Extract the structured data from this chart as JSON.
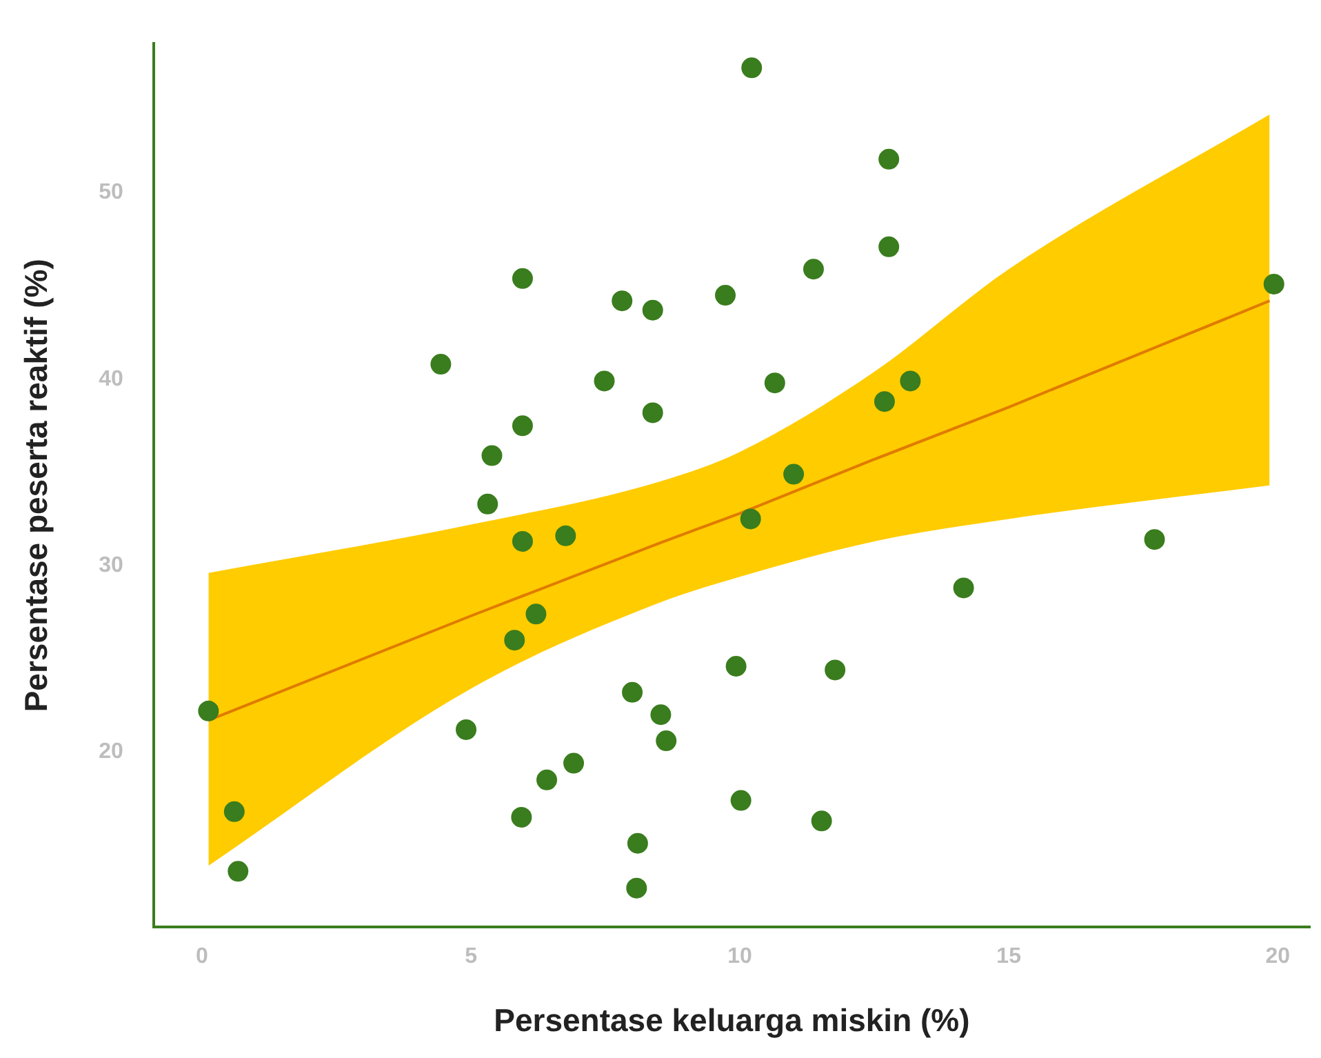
{
  "chart_data": {
    "type": "scatter",
    "xlabel": "Persentase keluarga miskin (%)",
    "ylabel": "Persentase peserta reaktif (%)",
    "xlim": [
      -0.9,
      20.6
    ],
    "xticks": [
      0,
      5,
      10,
      15,
      20
    ],
    "ylim": [
      10.6,
      58
    ],
    "yticks": [
      20,
      30,
      40,
      50
    ],
    "grid": false,
    "legend": false,
    "marker": "circle",
    "series": [
      {
        "type": "scatter",
        "color": "#3a7d1e",
        "x": [
          0.12,
          0.6,
          0.67,
          4.44,
          4.91,
          5.31,
          5.39,
          5.81,
          5.94,
          5.96,
          5.96,
          5.96,
          6.21,
          6.41,
          6.76,
          6.91,
          7.48,
          7.81,
          8.0,
          8.1,
          8.08,
          8.38,
          8.38,
          8.53,
          8.63,
          9.73,
          9.93,
          10.02,
          10.22,
          10.2,
          10.65,
          11.0,
          11.37,
          11.52,
          11.77,
          12.69,
          12.77,
          12.77,
          13.17,
          14.16,
          17.71,
          19.93
        ],
        "values": [
          22.2,
          16.8,
          13.6,
          40.8,
          21.2,
          33.3,
          35.9,
          26.0,
          16.5,
          45.4,
          37.5,
          31.3,
          27.4,
          18.5,
          31.6,
          19.4,
          39.9,
          44.2,
          23.2,
          15.1,
          12.7,
          43.7,
          38.2,
          22.0,
          20.6,
          44.5,
          24.6,
          17.4,
          56.7,
          32.5,
          39.8,
          34.9,
          45.9,
          16.3,
          24.4,
          38.8,
          51.8,
          47.1,
          39.9,
          28.8,
          31.4,
          45.1
        ]
      },
      {
        "type": "line",
        "color": "#e07b00",
        "marker": "none",
        "x": [
          0.12,
          5,
          8.5,
          10,
          12.5,
          15,
          19.85
        ],
        "values": [
          21.7,
          27.3,
          31.2,
          32.8,
          35.7,
          38.5,
          44.2
        ],
        "lower": [
          13.9,
          23.4,
          28.0,
          29.4,
          31.3,
          32.5,
          34.3
        ],
        "upper": [
          29.6,
          32.2,
          34.5,
          36.1,
          40.4,
          45.9,
          54.2
        ]
      }
    ]
  }
}
